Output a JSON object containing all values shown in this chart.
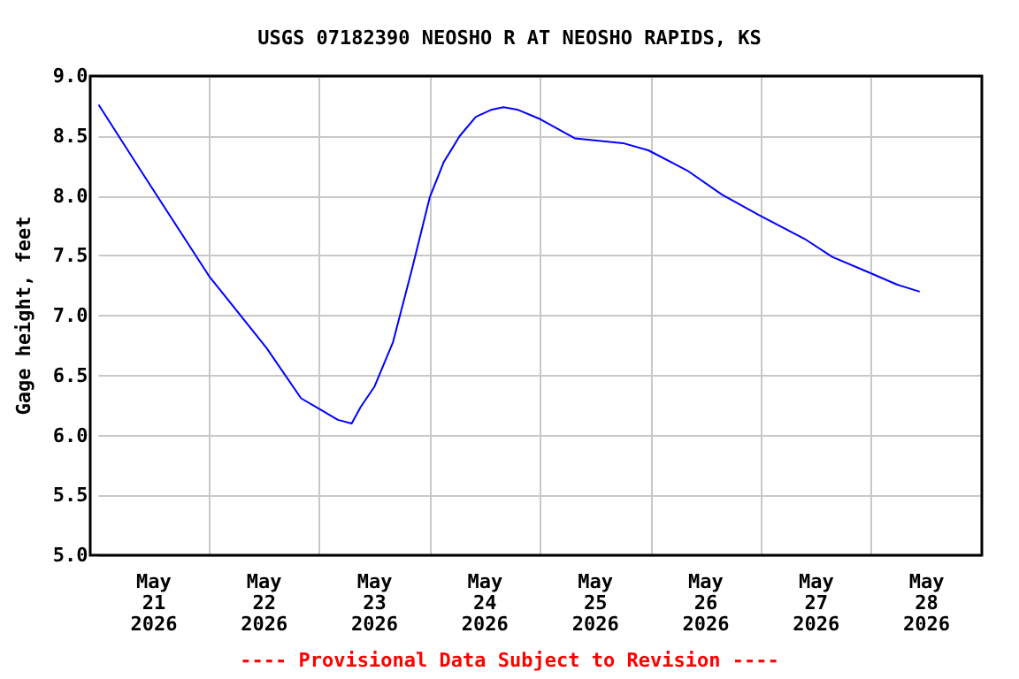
{
  "chart_data": {
    "type": "line",
    "title": "USGS 07182390 NEOSHO R AT NEOSHO RAPIDS, KS",
    "ylabel": "Gage height, feet",
    "annotations": [
      "---- Provisional Data Subject to Revision ----"
    ],
    "x": [
      "2026-05-21T00:00",
      "2026-05-21T10:00",
      "2026-05-22T00:00",
      "2026-05-22T12:30",
      "2026-05-22T20:00",
      "2026-05-23T00:00",
      "2026-05-23T04:00",
      "2026-05-23T07:00",
      "2026-05-23T09:00",
      "2026-05-23T12:00",
      "2026-05-23T16:00",
      "2026-05-23T20:00",
      "2026-05-24T00:00",
      "2026-05-24T03:00",
      "2026-05-24T06:30",
      "2026-05-24T10:00",
      "2026-05-24T13:30",
      "2026-05-24T16:00",
      "2026-05-24T19:00",
      "2026-05-25T00:00",
      "2026-05-25T07:30",
      "2026-05-25T18:00",
      "2026-05-25T23:30",
      "2026-05-26T08:00",
      "2026-05-26T15:30",
      "2026-05-26T23:30",
      "2026-05-27T09:30",
      "2026-05-27T15:30",
      "2026-05-27T23:30",
      "2026-05-28T05:30",
      "2026-05-28T10:30"
    ],
    "series": [
      {
        "color": "#0000ff",
        "values": [
          8.76,
          8.16,
          7.33,
          6.73,
          6.31,
          6.22,
          6.13,
          6.1,
          6.24,
          6.41,
          6.78,
          7.37,
          7.99,
          8.28,
          8.5,
          8.66,
          8.72,
          8.74,
          8.72,
          8.64,
          8.48,
          8.44,
          8.38,
          8.21,
          8.01,
          7.84,
          7.64,
          7.49,
          7.36,
          7.26,
          7.2
        ]
      }
    ],
    "xlim": [
      "2026-05-21T00:00",
      "2026-05-29T00:00"
    ],
    "xticks": [
      {
        "value": "2026-05-21T12:00",
        "label": "May\n21\n2026"
      },
      {
        "value": "2026-05-22T12:00",
        "label": "May\n22\n2026"
      },
      {
        "value": "2026-05-23T12:00",
        "label": "May\n23\n2026"
      },
      {
        "value": "2026-05-24T12:00",
        "label": "May\n24\n2026"
      },
      {
        "value": "2026-05-25T12:00",
        "label": "May\n25\n2026"
      },
      {
        "value": "2026-05-26T12:00",
        "label": "May\n26\n2026"
      },
      {
        "value": "2026-05-27T12:00",
        "label": "May\n27\n2026"
      },
      {
        "value": "2026-05-28T12:00",
        "label": "May\n28\n2026"
      },
      {
        "value": "2026-05-22T00:00",
        "label": null
      },
      {
        "value": "2026-05-23T00:00",
        "label": null
      },
      {
        "value": "2026-05-24T00:00",
        "label": null
      },
      {
        "value": "2026-05-25T00:00",
        "label": null
      },
      {
        "value": "2026-05-26T00:00",
        "label": null
      },
      {
        "value": "2026-05-27T00:00",
        "label": null
      },
      {
        "value": "2026-05-28T00:00",
        "label": null
      }
    ],
    "ylim": [
      5,
      9
    ],
    "yticks": [
      {
        "value": 5,
        "label": "5.0"
      },
      {
        "value": 5.5,
        "label": "5.5"
      },
      {
        "value": 6,
        "label": "6.0"
      },
      {
        "value": 6.5,
        "label": "6.5"
      },
      {
        "value": 7,
        "label": "7.0"
      },
      {
        "value": 7.5,
        "label": "7.5"
      },
      {
        "value": 8,
        "label": "8.0"
      },
      {
        "value": 8.5,
        "label": "8.5"
      },
      {
        "value": 9,
        "label": "9.0"
      }
    ],
    "grid": true,
    "marker": "none",
    "line_style": "solid"
  }
}
